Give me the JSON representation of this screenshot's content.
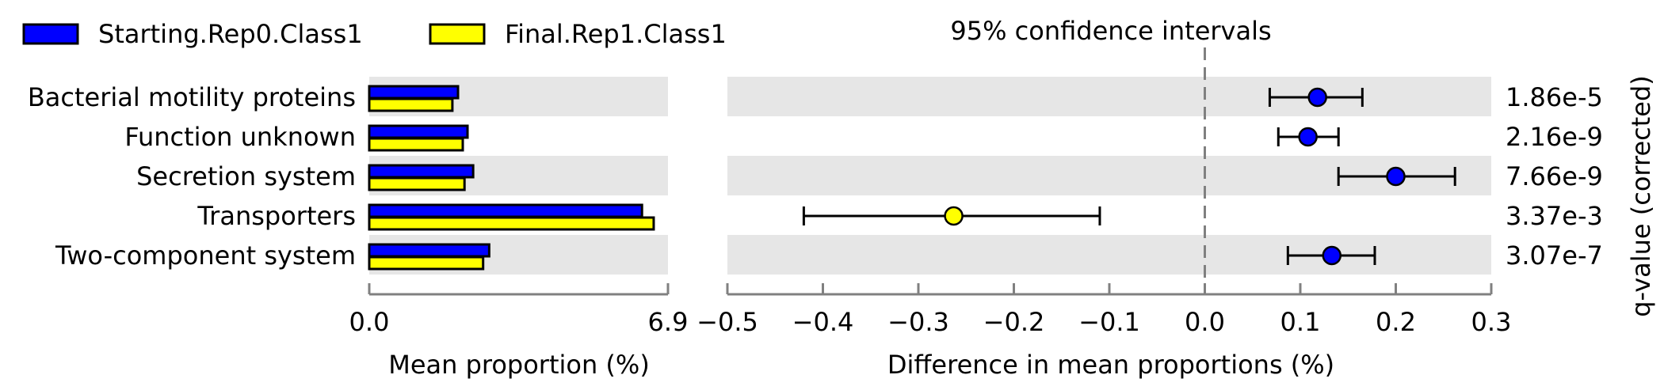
{
  "chart_data": {
    "type": "scatter",
    "legend": [
      {
        "name": "Starting.Rep0.Class1",
        "color": "#0000ff"
      },
      {
        "name": "Final.Rep1.Class1",
        "color": "#ffff00"
      }
    ],
    "legend_position": "top-left",
    "categories": [
      "Bacterial motility proteins",
      "Function unknown",
      "Secretion system",
      "Transporters",
      "Two-component system"
    ],
    "mean_proportion": {
      "xlabel": "Mean proportion (%)",
      "xlim": [
        0.0,
        6.9
      ],
      "tick_labels": [
        "0.0",
        "6.9"
      ],
      "series": [
        {
          "name": "Starting.Rep0.Class1",
          "color": "#0000ff",
          "values": [
            2.05,
            2.27,
            2.4,
            6.3,
            2.77
          ]
        },
        {
          "name": "Final.Rep1.Class1",
          "color": "#ffff00",
          "values": [
            1.92,
            2.16,
            2.2,
            6.57,
            2.63
          ]
        }
      ]
    },
    "difference": {
      "title": "95% confidence intervals",
      "xlabel": "Difference in mean proportions (%)",
      "xlim": [
        -0.5,
        0.3
      ],
      "ticks": [
        -0.5,
        -0.4,
        -0.3,
        -0.2,
        -0.1,
        0.0,
        0.1,
        0.2,
        0.3
      ],
      "tick_labels": [
        "−0.5",
        "−0.4",
        "−0.3",
        "−0.2",
        "−0.1",
        "0.0",
        "0.1",
        "0.2",
        "0.3"
      ],
      "reference_line": 0.0,
      "points": [
        {
          "value": 0.118,
          "ci": [
            0.068,
            0.165
          ],
          "color": "#0000ff"
        },
        {
          "value": 0.108,
          "ci": [
            0.077,
            0.14
          ],
          "color": "#0000ff"
        },
        {
          "value": 0.2,
          "ci": [
            0.14,
            0.262
          ],
          "color": "#0000ff"
        },
        {
          "value": -0.263,
          "ci": [
            -0.42,
            -0.11
          ],
          "color": "#ffff00"
        },
        {
          "value": 0.133,
          "ci": [
            0.087,
            0.178
          ],
          "color": "#0000ff"
        }
      ]
    },
    "qvalues": {
      "label": "q-value (corrected)",
      "values": [
        "1.86e-5",
        "2.16e-9",
        "7.66e-9",
        "3.37e-3",
        "3.07e-7"
      ]
    },
    "colors": {
      "band": "#e6e6e6",
      "axis": "#808080",
      "ref_line": "#808080"
    }
  }
}
